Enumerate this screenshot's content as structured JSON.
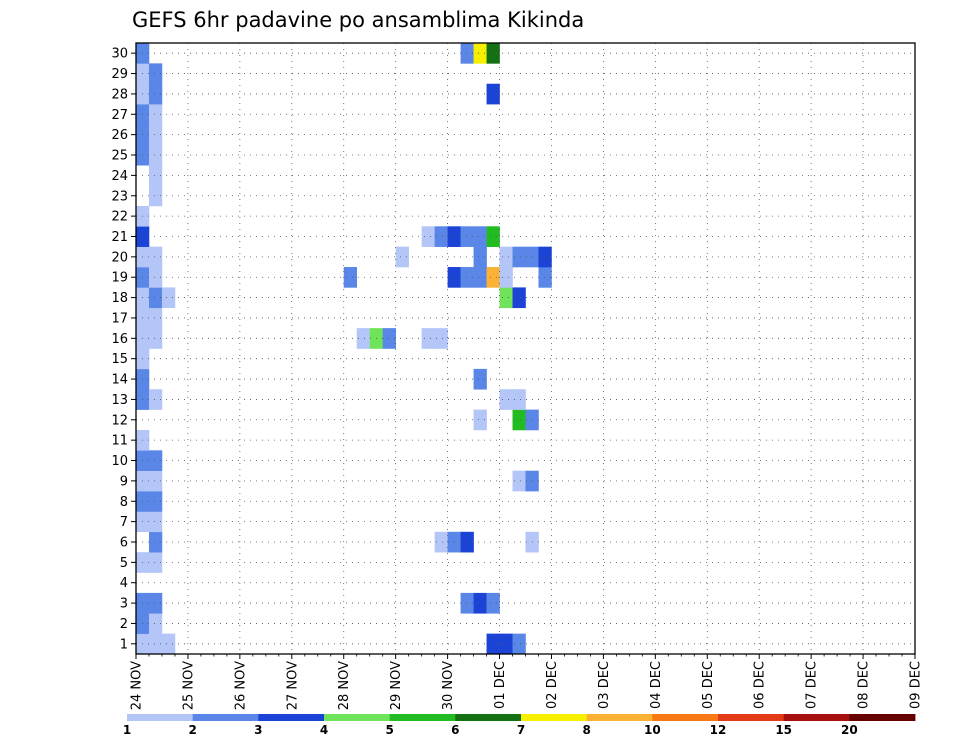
{
  "chart_data": {
    "type": "heatmap",
    "title": "GEFS 6hr padavine po ansamblima Kikinda",
    "xlabel": "",
    "ylabel": "",
    "x_tick_labels": [
      "24 NOV",
      "25 NOV",
      "26 NOV",
      "27 NOV",
      "28 NOV",
      "29 NOV",
      "30 NOV",
      "01 DEC",
      "02 DEC",
      "03 DEC",
      "04 DEC",
      "05 DEC",
      "06 DEC",
      "07 DEC",
      "08 DEC",
      "09 DEC"
    ],
    "y_tick_labels": [
      "1",
      "2",
      "3",
      "4",
      "5",
      "6",
      "7",
      "8",
      "9",
      "10",
      "11",
      "12",
      "13",
      "14",
      "15",
      "16",
      "17",
      "18",
      "19",
      "20",
      "21",
      "22",
      "23",
      "24",
      "25",
      "26",
      "27",
      "28",
      "29",
      "30"
    ],
    "ylim": [
      0,
      30
    ],
    "time_step_hours": 6,
    "grid": true,
    "legend": "bottom colorbar",
    "colorbar": {
      "labels": [
        "1",
        "2",
        "3",
        "4",
        "5",
        "6",
        "7",
        "8",
        "10",
        "12",
        "15",
        "20"
      ],
      "colors": [
        "#b4c6f7",
        "#5a86e8",
        "#1b43d6",
        "#6fe45a",
        "#22bb22",
        "#137013",
        "#f6f000",
        "#fbb134",
        "#f77a14",
        "#e33b18",
        "#a81010",
        "#660000"
      ]
    },
    "cells": [
      {
        "m": 1,
        "t": 0,
        "c": 1
      },
      {
        "m": 1,
        "t": 1,
        "c": 1
      },
      {
        "m": 1,
        "t": 2,
        "c": 1
      },
      {
        "m": 1,
        "t": 27,
        "c": 3
      },
      {
        "m": 1,
        "t": 28,
        "c": 3
      },
      {
        "m": 1,
        "t": 29,
        "c": 2
      },
      {
        "m": 2,
        "t": 0,
        "c": 2
      },
      {
        "m": 2,
        "t": 1,
        "c": 1
      },
      {
        "m": 3,
        "t": 0,
        "c": 2
      },
      {
        "m": 3,
        "t": 1,
        "c": 2
      },
      {
        "m": 3,
        "t": 25,
        "c": 2
      },
      {
        "m": 3,
        "t": 26,
        "c": 3
      },
      {
        "m": 3,
        "t": 27,
        "c": 2
      },
      {
        "m": 5,
        "t": 0,
        "c": 1
      },
      {
        "m": 5,
        "t": 1,
        "c": 1
      },
      {
        "m": 6,
        "t": 1,
        "c": 2
      },
      {
        "m": 6,
        "t": 23,
        "c": 1
      },
      {
        "m": 6,
        "t": 24,
        "c": 2
      },
      {
        "m": 6,
        "t": 25,
        "c": 3
      },
      {
        "m": 6,
        "t": 30,
        "c": 1
      },
      {
        "m": 7,
        "t": 0,
        "c": 1
      },
      {
        "m": 7,
        "t": 1,
        "c": 1
      },
      {
        "m": 8,
        "t": 0,
        "c": 2
      },
      {
        "m": 8,
        "t": 1,
        "c": 2
      },
      {
        "m": 9,
        "t": 0,
        "c": 1
      },
      {
        "m": 9,
        "t": 1,
        "c": 1
      },
      {
        "m": 9,
        "t": 29,
        "c": 1
      },
      {
        "m": 9,
        "t": 30,
        "c": 2
      },
      {
        "m": 10,
        "t": 0,
        "c": 2
      },
      {
        "m": 10,
        "t": 1,
        "c": 2
      },
      {
        "m": 11,
        "t": 0,
        "c": 1
      },
      {
        "m": 12,
        "t": 26,
        "c": 1
      },
      {
        "m": 12,
        "t": 29,
        "c": 5
      },
      {
        "m": 12,
        "t": 30,
        "c": 2
      },
      {
        "m": 13,
        "t": 0,
        "c": 2
      },
      {
        "m": 13,
        "t": 1,
        "c": 1
      },
      {
        "m": 13,
        "t": 28,
        "c": 1
      },
      {
        "m": 13,
        "t": 29,
        "c": 1
      },
      {
        "m": 14,
        "t": 0,
        "c": 2
      },
      {
        "m": 14,
        "t": 26,
        "c": 2
      },
      {
        "m": 15,
        "t": 0,
        "c": 1
      },
      {
        "m": 16,
        "t": 0,
        "c": 1
      },
      {
        "m": 16,
        "t": 1,
        "c": 1
      },
      {
        "m": 16,
        "t": 17,
        "c": 1
      },
      {
        "m": 16,
        "t": 18,
        "c": 4
      },
      {
        "m": 16,
        "t": 19,
        "c": 2
      },
      {
        "m": 16,
        "t": 22,
        "c": 1
      },
      {
        "m": 16,
        "t": 23,
        "c": 1
      },
      {
        "m": 17,
        "t": 0,
        "c": 1
      },
      {
        "m": 17,
        "t": 1,
        "c": 1
      },
      {
        "m": 18,
        "t": 0,
        "c": 1
      },
      {
        "m": 18,
        "t": 1,
        "c": 2
      },
      {
        "m": 18,
        "t": 2,
        "c": 1
      },
      {
        "m": 18,
        "t": 28,
        "c": 4
      },
      {
        "m": 18,
        "t": 29,
        "c": 3
      },
      {
        "m": 19,
        "t": 0,
        "c": 2
      },
      {
        "m": 19,
        "t": 1,
        "c": 1
      },
      {
        "m": 19,
        "t": 16,
        "c": 2
      },
      {
        "m": 19,
        "t": 24,
        "c": 3
      },
      {
        "m": 19,
        "t": 25,
        "c": 2
      },
      {
        "m": 19,
        "t": 26,
        "c": 2
      },
      {
        "m": 19,
        "t": 27,
        "c": 8
      },
      {
        "m": 19,
        "t": 28,
        "c": 1
      },
      {
        "m": 19,
        "t": 31,
        "c": 2
      },
      {
        "m": 20,
        "t": 0,
        "c": 1
      },
      {
        "m": 20,
        "t": 1,
        "c": 1
      },
      {
        "m": 20,
        "t": 20,
        "c": 1
      },
      {
        "m": 20,
        "t": 26,
        "c": 2
      },
      {
        "m": 20,
        "t": 28,
        "c": 1
      },
      {
        "m": 20,
        "t": 29,
        "c": 2
      },
      {
        "m": 20,
        "t": 30,
        "c": 2
      },
      {
        "m": 20,
        "t": 31,
        "c": 3
      },
      {
        "m": 21,
        "t": 0,
        "c": 3
      },
      {
        "m": 21,
        "t": 22,
        "c": 1
      },
      {
        "m": 21,
        "t": 23,
        "c": 2
      },
      {
        "m": 21,
        "t": 24,
        "c": 3
      },
      {
        "m": 21,
        "t": 25,
        "c": 2
      },
      {
        "m": 21,
        "t": 26,
        "c": 2
      },
      {
        "m": 21,
        "t": 27,
        "c": 5
      },
      {
        "m": 22,
        "t": 0,
        "c": 1
      },
      {
        "m": 23,
        "t": 1,
        "c": 1
      },
      {
        "m": 24,
        "t": 1,
        "c": 1
      },
      {
        "m": 25,
        "t": 0,
        "c": 2
      },
      {
        "m": 25,
        "t": 1,
        "c": 1
      },
      {
        "m": 26,
        "t": 0,
        "c": 2
      },
      {
        "m": 26,
        "t": 1,
        "c": 1
      },
      {
        "m": 27,
        "t": 0,
        "c": 2
      },
      {
        "m": 27,
        "t": 1,
        "c": 1
      },
      {
        "m": 28,
        "t": 0,
        "c": 1
      },
      {
        "m": 28,
        "t": 1,
        "c": 2
      },
      {
        "m": 28,
        "t": 27,
        "c": 3
      },
      {
        "m": 29,
        "t": 0,
        "c": 1
      },
      {
        "m": 29,
        "t": 1,
        "c": 2
      },
      {
        "m": 30,
        "t": 0,
        "c": 2
      },
      {
        "m": 30,
        "t": 25,
        "c": 2
      },
      {
        "m": 30,
        "t": 26,
        "c": 7
      },
      {
        "m": 30,
        "t": 27,
        "c": 6
      }
    ],
    "notes": "cells: m = ensemble member (y), t = 6-hour step index from 24 NOV 00Z (x), c = 1-based colorbar class"
  }
}
